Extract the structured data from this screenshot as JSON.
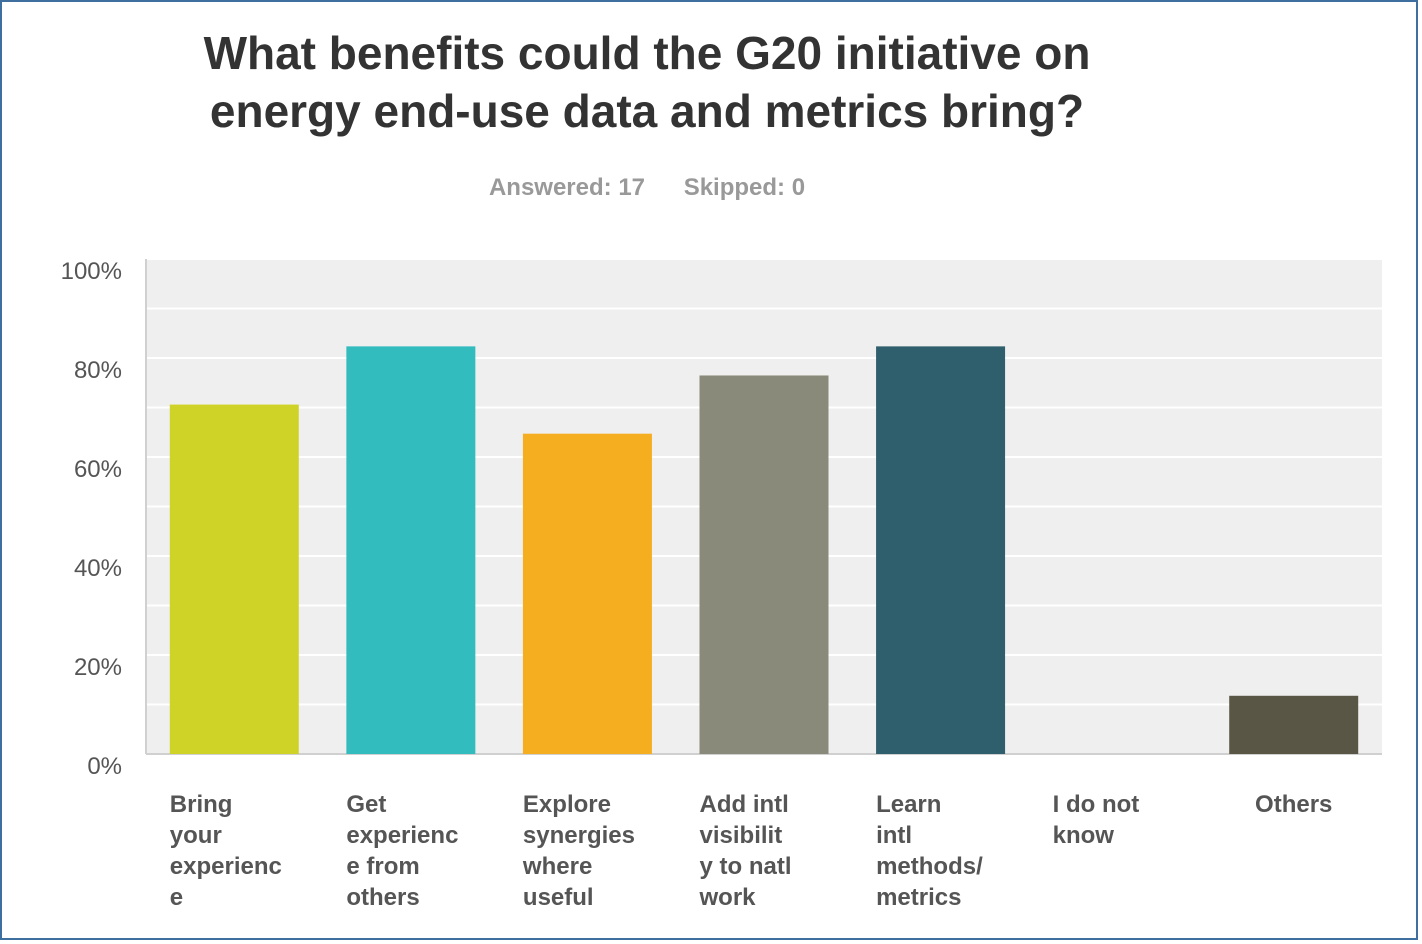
{
  "chart_data": {
    "type": "bar",
    "title_lines": [
      "What benefits could the G20 initiative on",
      "energy end-use data and metrics bring?"
    ],
    "answered": "Answered: 17",
    "skipped": "Skipped: 0",
    "categories": [
      [
        "Bring",
        "your",
        "experienc",
        "e"
      ],
      [
        "Get",
        "experienc",
        "e from",
        "others"
      ],
      [
        "Explore",
        "synergies",
        "where",
        "useful"
      ],
      [
        "Add intl",
        "visibilit",
        "y to natl",
        "work"
      ],
      [
        "Learn",
        "intl",
        "methods/",
        "metrics"
      ],
      [
        "I do not",
        "know"
      ],
      [
        "Others"
      ]
    ],
    "values": [
      70.59,
      82.35,
      64.71,
      76.47,
      82.35,
      0,
      11.76
    ],
    "colors": [
      "#cfd327",
      "#33bcbe",
      "#f5ae1f",
      "#8a8a7a",
      "#2f5f6c",
      "#7a7a7a",
      "#5a5646"
    ],
    "ylim": [
      0,
      100
    ],
    "yticks": [
      "0%",
      "20%",
      "40%",
      "60%",
      "80%",
      "100%"
    ],
    "grid": true
  }
}
